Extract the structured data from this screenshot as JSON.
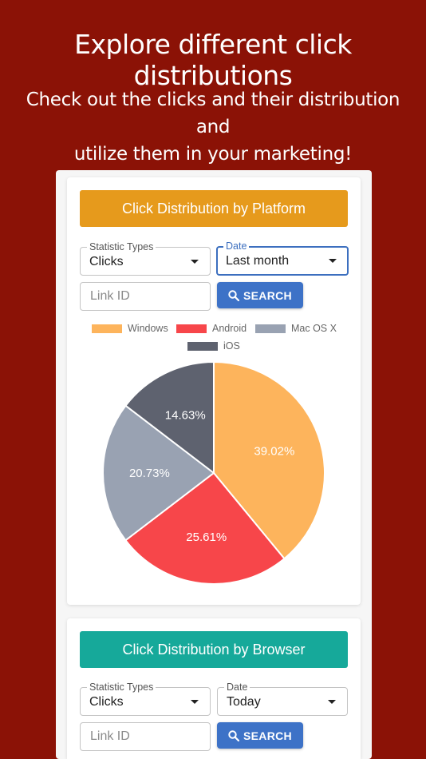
{
  "hero": {
    "title": "Explore different click distributions",
    "subtitle_line1": "Check out the clicks and their distribution and",
    "subtitle_line2": "utilize them in your marketing!"
  },
  "platform_card": {
    "header": "Click Distribution by Platform",
    "header_color": "#e69a1c",
    "statistic_label": "Statistic Types",
    "statistic_value": "Clicks",
    "date_label": "Date",
    "date_value": "Last month",
    "link_placeholder": "Link ID",
    "search_label": "SEARCH"
  },
  "browser_card": {
    "header": "Click Distribution by Browser",
    "header_color": "#16a99a",
    "statistic_label": "Statistic Types",
    "statistic_value": "Clicks",
    "date_label": "Date",
    "date_value": "Today",
    "link_placeholder": "Link ID",
    "search_label": "SEARCH"
  },
  "chart_data": {
    "type": "pie",
    "title": "",
    "legend_position": "top",
    "categories": [
      "Windows",
      "Android",
      "Mac OS X",
      "iOS"
    ],
    "values": [
      39.02,
      25.61,
      20.73,
      14.63
    ],
    "labels": [
      "39.02%",
      "25.61%",
      "20.73%",
      "14.63%"
    ],
    "colors": [
      "#fdb45c",
      "#f7464a",
      "#99a2b2",
      "#5e626f"
    ]
  },
  "icons": {
    "search": "magnifier-icon",
    "dropdown": "caret-down-icon"
  }
}
